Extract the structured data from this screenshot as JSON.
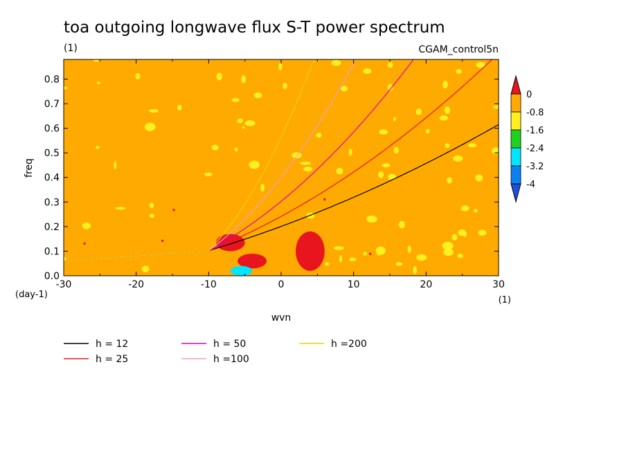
{
  "chart_data": {
    "type": "heatmap",
    "title": "toa outgoing longwave flux S-T power spectrum",
    "subtitle_left": "(1)",
    "subtitle_right": "CGAM_control5n",
    "xlabel": "wvn",
    "ylabel": "freq",
    "x_unit_label": "(1)",
    "y_unit_label": "(day-1)",
    "xlim": [
      -30,
      30
    ],
    "ylim": [
      0,
      0.88
    ],
    "x_ticks": [
      "-30",
      "-20",
      "-10",
      "0",
      "10",
      "20",
      "30"
    ],
    "y_ticks": [
      "0.0",
      "0.1",
      "0.2",
      "0.3",
      "0.4",
      "0.5",
      "0.6",
      "0.7",
      "0.8"
    ],
    "background_level_color": "#FFAA00",
    "colorbar": {
      "labels": [
        "0",
        "-0.8",
        "-1.6",
        "-2.4",
        "-3.2",
        "-4"
      ],
      "colors": [
        "#E8141E",
        "#FFAA00",
        "#FFF01E",
        "#1ED21E",
        "#00E6FF",
        "#0A82F0",
        "#1E50DC"
      ]
    },
    "features": [
      {
        "level_color": "#E8141E",
        "region": {
          "x": [
            -9,
            -5
          ],
          "y": [
            0.1,
            0.17
          ]
        }
      },
      {
        "level_color": "#E8141E",
        "region": {
          "x": [
            2,
            6
          ],
          "y": [
            0.02,
            0.18
          ]
        }
      },
      {
        "level_color": "#E8141E",
        "region": {
          "x": [
            -6,
            -2
          ],
          "y": [
            0.03,
            0.09
          ]
        }
      },
      {
        "level_color": "#00E6FF",
        "region": {
          "x": [
            -7,
            -4
          ],
          "y": [
            0.0,
            0.04
          ]
        }
      }
    ],
    "series": [
      {
        "name": "h = 12",
        "h": 12,
        "color": "#000000"
      },
      {
        "name": "h = 25",
        "h": 25,
        "color": "#E8141E"
      },
      {
        "name": "h = 50",
        "h": 50,
        "color": "#E000B0"
      },
      {
        "name": "h =100",
        "h": 100,
        "color": "#E8A0C8"
      },
      {
        "name": "h =200",
        "h": 200,
        "color": "#F0D000"
      }
    ]
  }
}
